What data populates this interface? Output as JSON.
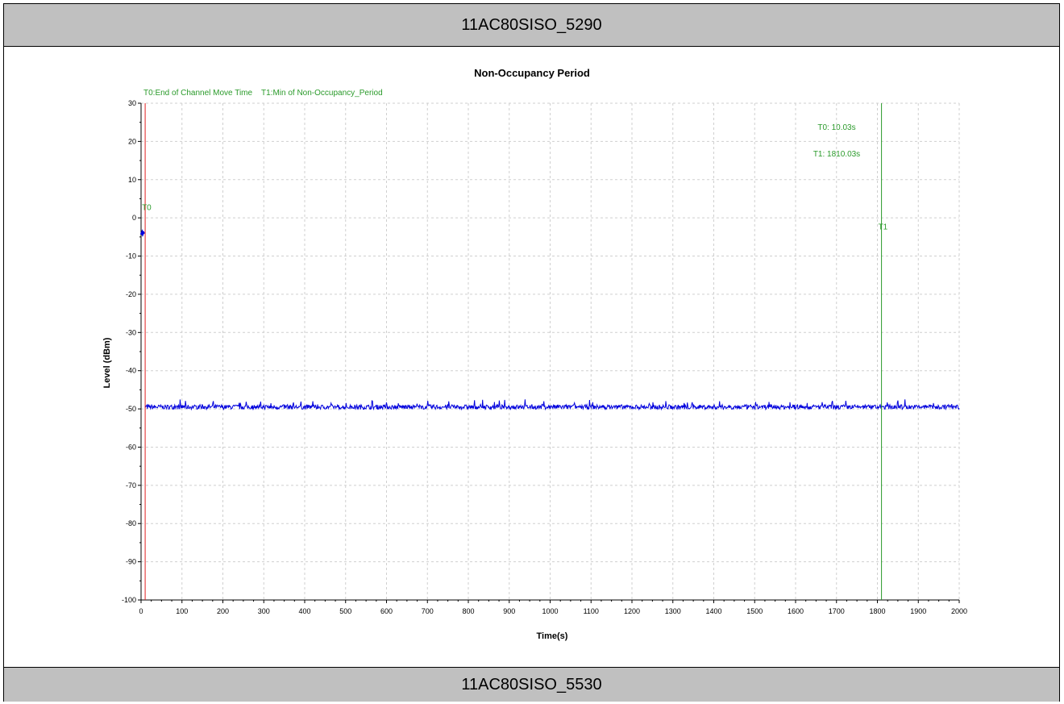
{
  "header": {
    "top_label": "11AC80SISO_5290",
    "bottom_label": "11AC80SISO_5530"
  },
  "chart_data": {
    "type": "line",
    "title": "Non-Occupancy Period",
    "xlabel": "Time(s)",
    "ylabel": "Level (dBm)",
    "xlim": [
      0,
      2000
    ],
    "ylim": [
      -100,
      30
    ],
    "x_ticks": [
      0,
      100,
      200,
      300,
      400,
      500,
      600,
      700,
      800,
      900,
      1000,
      1100,
      1200,
      1300,
      1400,
      1500,
      1600,
      1700,
      1800,
      1900,
      2000
    ],
    "y_ticks": [
      30,
      20,
      10,
      0,
      -10,
      -20,
      -30,
      -40,
      -50,
      -60,
      -70,
      -80,
      -90,
      -100
    ],
    "grid": true,
    "legend": {
      "t0": "T0:End of Channel Move Time",
      "t1": "T1:Min of Non-Occupancy_Period"
    },
    "markers": [
      {
        "name": "T0",
        "x": 10.03,
        "color": "#e02020",
        "label": "T0"
      },
      {
        "name": "T1",
        "x": 1810.03,
        "color": "#2a9a2a",
        "label": "T1"
      }
    ],
    "annotations": {
      "t0_value": "T0: 10.03s",
      "t1_value": "T1: 1810.03s"
    },
    "series": [
      {
        "segments": [
          {
            "x": [
              0,
              8
            ],
            "y": [
              -4,
              -4
            ],
            "noise": 0.4
          },
          {
            "x": [
              10.03,
              2000
            ],
            "y": [
              -49.5,
              -49.5
            ],
            "noise": 0.6
          }
        ],
        "color": "#0000dd"
      }
    ]
  }
}
